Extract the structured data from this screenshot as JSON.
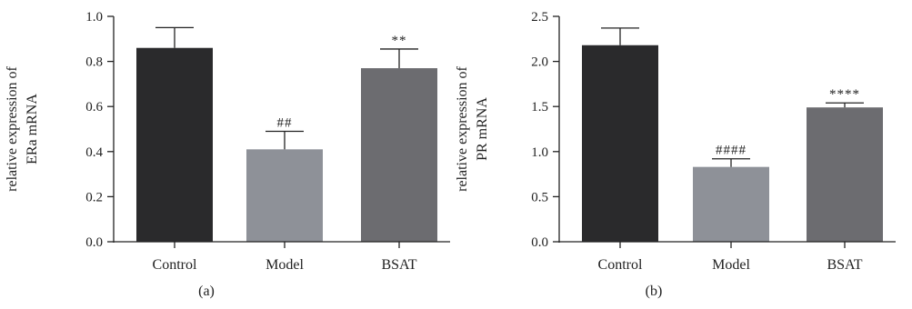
{
  "chart_data": [
    {
      "type": "bar",
      "panel_label": "(a)",
      "categories": [
        "Control",
        "Model",
        "BSAT"
      ],
      "values": [
        0.86,
        0.41,
        0.77
      ],
      "errors": [
        0.09,
        0.08,
        0.085
      ],
      "significance": [
        "",
        "##",
        "**"
      ],
      "colors": [
        "#2a2a2c",
        "#8e9198",
        "#6c6c70"
      ],
      "ylabel_lines": [
        "relative expression of",
        "ERa mRNA"
      ],
      "ylim": [
        0,
        1.0
      ],
      "yticks": [
        "0.0",
        "0.2",
        "0.4",
        "0.6",
        "0.8",
        "1.0"
      ]
    },
    {
      "type": "bar",
      "panel_label": "(b)",
      "categories": [
        "Control",
        "Model",
        "BSAT"
      ],
      "values": [
        2.18,
        0.83,
        1.49
      ],
      "errors": [
        0.19,
        0.09,
        0.05
      ],
      "significance": [
        "",
        "####",
        "****"
      ],
      "colors": [
        "#2a2a2c",
        "#8e9198",
        "#6c6c70"
      ],
      "ylabel_lines": [
        "relative expression of",
        "PR mRNA"
      ],
      "ylim": [
        0,
        2.5
      ],
      "yticks": [
        "0.0",
        "0.5",
        "1.0",
        "1.5",
        "2.0",
        "2.5"
      ]
    }
  ]
}
